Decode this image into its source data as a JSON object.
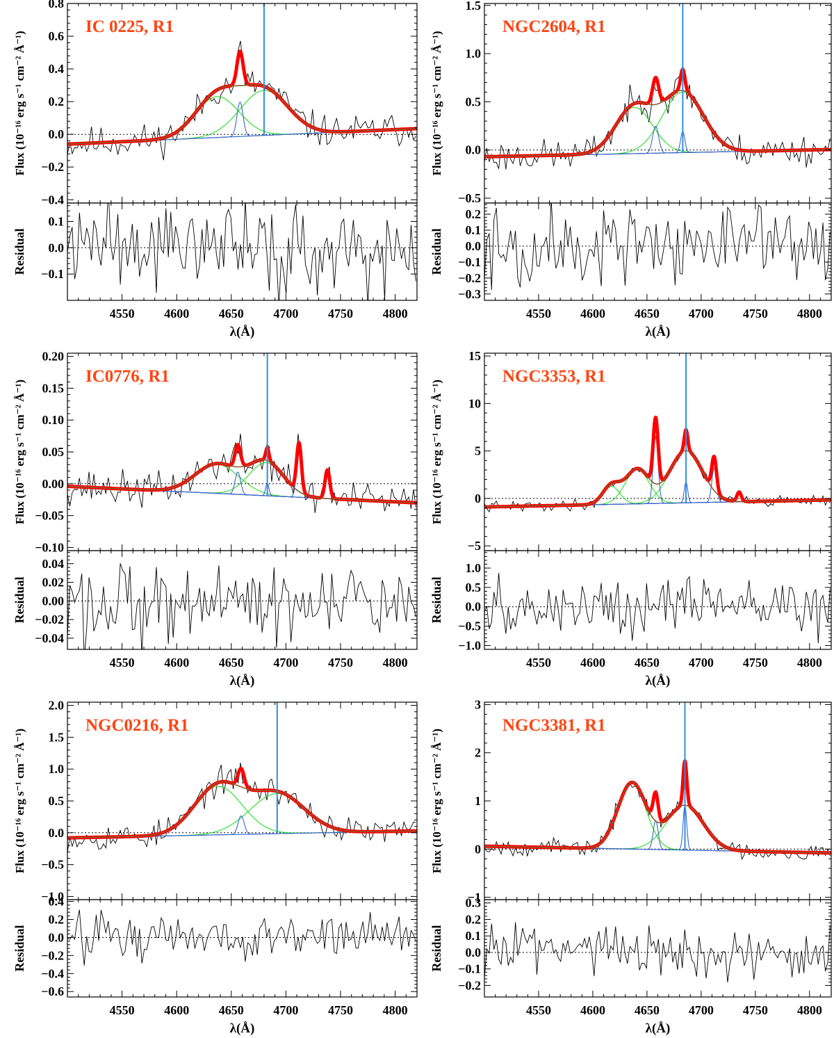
{
  "figure": {
    "xlabel": "λ(Å)",
    "ylabel_flux": "Flux (10⁻¹⁶ erg s⁻¹ cm⁻² Å⁻¹)",
    "ylabel_resid": "Residual",
    "colors": {
      "observed": "#000000",
      "total_fit": "#ff0000",
      "broad_component": "#22dd22",
      "narrow_component": "#3a64c8",
      "continuum": "#2a6fd0",
      "smooth_fit": "#8b5a2b",
      "marker_line": "#2f8fe0",
      "label": "#ff4411"
    }
  },
  "chart_data": [
    {
      "type": "line",
      "label": "IC 0225, R1",
      "xlim": [
        4500,
        4820
      ],
      "xticks": [
        4550,
        4600,
        4650,
        4700,
        4750,
        4800
      ],
      "flux": {
        "ylim": [
          -0.42,
          0.8
        ],
        "yticks": [
          -0.4,
          -0.2,
          0.0,
          0.2,
          0.4,
          0.6,
          0.8
        ],
        "decimals": 1
      },
      "resid": {
        "ylim": [
          -0.2,
          0.17
        ],
        "yticks": [
          -0.1,
          0.0,
          0.1
        ],
        "decimals": 1
      },
      "continuum": [
        [
          4500,
          -0.06
        ],
        [
          4820,
          0.035
        ]
      ],
      "broad": [
        {
          "c": 4637,
          "a": 0.25,
          "s": 20
        },
        {
          "c": 4680,
          "a": 0.275,
          "s": 22
        }
      ],
      "narrow": [
        {
          "c": 4658,
          "a": 0.21,
          "s": 2.8
        }
      ],
      "marker": 4680,
      "noise_amp": 0.08,
      "resid_amp": 0.13,
      "seed": 11
    },
    {
      "type": "line",
      "label": "NGC2604, R1",
      "xlim": [
        4500,
        4820
      ],
      "xticks": [
        4550,
        4600,
        4650,
        4700,
        4750,
        4800
      ],
      "flux": {
        "ylim": [
          -0.55,
          1.52
        ],
        "yticks": [
          -0.5,
          0.0,
          0.5,
          1.0,
          1.5
        ],
        "decimals": 1
      },
      "resid": {
        "ylim": [
          -0.34,
          0.27
        ],
        "yticks": [
          -0.3,
          -0.2,
          -0.1,
          0.0,
          0.1,
          0.2
        ],
        "decimals": 1
      },
      "continuum": [
        [
          4500,
          -0.07
        ],
        [
          4820,
          0.005
        ]
      ],
      "broad": [
        {
          "c": 4638,
          "a": 0.48,
          "s": 17
        },
        {
          "c": 4683,
          "a": 0.63,
          "s": 19
        }
      ],
      "narrow": [
        {
          "c": 4658,
          "a": 0.28,
          "s": 2.8
        },
        {
          "c": 4683,
          "a": 0.22,
          "s": 2.0
        }
      ],
      "marker": 4683,
      "noise_amp": 0.13,
      "resid_amp": 0.17,
      "seed": 23
    },
    {
      "type": "line",
      "label": "IC0776, R1",
      "xlim": [
        4500,
        4820
      ],
      "xticks": [
        4550,
        4600,
        4650,
        4700,
        4750,
        4800
      ],
      "flux": {
        "ylim": [
          -0.105,
          0.205
        ],
        "yticks": [
          -0.1,
          -0.05,
          0.0,
          0.05,
          0.1,
          0.15,
          0.2
        ],
        "decimals": 2
      },
      "resid": {
        "ylim": [
          -0.052,
          0.054
        ],
        "yticks": [
          -0.04,
          -0.02,
          0.0,
          0.02,
          0.04
        ],
        "decimals": 2
      },
      "continuum": [
        [
          4500,
          -0.004
        ],
        [
          4820,
          -0.03
        ]
      ],
      "broad": [
        {
          "c": 4637,
          "a": 0.046,
          "s": 20
        },
        {
          "c": 4682,
          "a": 0.052,
          "s": 16
        }
      ],
      "narrow": [
        {
          "c": 4656,
          "a": 0.035,
          "s": 2.5
        },
        {
          "c": 4683,
          "a": 0.02,
          "s": 1.5
        },
        {
          "c": 4712,
          "a": 0.077,
          "s": 2.2
        },
        {
          "c": 4738,
          "a": 0.045,
          "s": 2.2
        }
      ],
      "marker": 4683,
      "noise_amp": 0.022,
      "resid_amp": 0.033,
      "seed": 37
    },
    {
      "type": "line",
      "label": "NGC3353, R1",
      "xlim": [
        4500,
        4820
      ],
      "xticks": [
        4550,
        4600,
        4650,
        4700,
        4750,
        4800
      ],
      "flux": {
        "ylim": [
          -5.5,
          15.3
        ],
        "yticks": [
          -5,
          0,
          5,
          10,
          15
        ],
        "decimals": 0
      },
      "resid": {
        "ylim": [
          -1.1,
          1.45
        ],
        "yticks": [
          -1.0,
          -0.5,
          0.0,
          0.5,
          1.0
        ],
        "decimals": 1
      },
      "continuum": [
        [
          4500,
          -0.9
        ],
        [
          4820,
          -0.15
        ]
      ],
      "broad": [
        {
          "c": 4617,
          "a": 1.9,
          "s": 8
        },
        {
          "c": 4641,
          "a": 3.65,
          "s": 11
        },
        {
          "c": 4686,
          "a": 5.5,
          "s": 15
        }
      ],
      "narrow": [
        {
          "c": 4658,
          "a": 7.0,
          "s": 2.3
        },
        {
          "c": 4686,
          "a": 2.2,
          "s": 1.6
        },
        {
          "c": 4712,
          "a": 3.6,
          "s": 2.2
        },
        {
          "c": 4735,
          "a": 1.0,
          "s": 2.0
        }
      ],
      "marker": 4686,
      "noise_amp": 0.45,
      "resid_amp": 0.55,
      "seed": 41
    },
    {
      "type": "line",
      "label": "NGC0216, R1",
      "xlim": [
        4500,
        4820
      ],
      "xticks": [
        4550,
        4600,
        4650,
        4700,
        4750,
        4800
      ],
      "flux": {
        "ylim": [
          -1.05,
          2.05
        ],
        "yticks": [
          -1.0,
          -0.5,
          0.0,
          0.5,
          1.0,
          1.5,
          2.0
        ],
        "decimals": 1
      },
      "resid": {
        "ylim": [
          -0.66,
          0.42
        ],
        "yticks": [
          -0.6,
          -0.4,
          -0.2,
          0.0,
          0.2,
          0.4
        ],
        "decimals": 1
      },
      "continuum": [
        [
          4500,
          -0.08
        ],
        [
          4820,
          0.03
        ]
      ],
      "broad": [
        {
          "c": 4638,
          "a": 0.76,
          "s": 22
        },
        {
          "c": 4692,
          "a": 0.63,
          "s": 25
        }
      ],
      "narrow": [
        {
          "c": 4659,
          "a": 0.29,
          "s": 2.8
        }
      ],
      "marker": 4692,
      "noise_amp": 0.17,
      "resid_amp": 0.18,
      "seed": 53
    },
    {
      "type": "line",
      "label": "NGC3381, R1",
      "xlim": [
        4500,
        4820
      ],
      "xticks": [
        4550,
        4600,
        4650,
        4700,
        4750,
        4800
      ],
      "flux": {
        "ylim": [
          -1.05,
          3.05
        ],
        "yticks": [
          -1,
          0,
          1,
          2,
          3
        ],
        "decimals": 0
      },
      "resid": {
        "ylim": [
          -0.27,
          0.32
        ],
        "yticks": [
          -0.2,
          -0.1,
          0.0,
          0.1,
          0.2,
          0.3
        ],
        "decimals": 1
      },
      "continuum": [
        [
          4500,
          0.06
        ],
        [
          4820,
          -0.08
        ]
      ],
      "broad": [
        {
          "c": 4636,
          "a": 1.37,
          "s": 13
        },
        {
          "c": 4685,
          "a": 0.93,
          "s": 17
        }
      ],
      "narrow": [
        {
          "c": 4658,
          "a": 0.6,
          "s": 2.3
        },
        {
          "c": 4685,
          "a": 0.92,
          "s": 1.7
        }
      ],
      "marker": 4685,
      "noise_amp": 0.14,
      "resid_amp": 0.12,
      "seed": 67
    }
  ]
}
